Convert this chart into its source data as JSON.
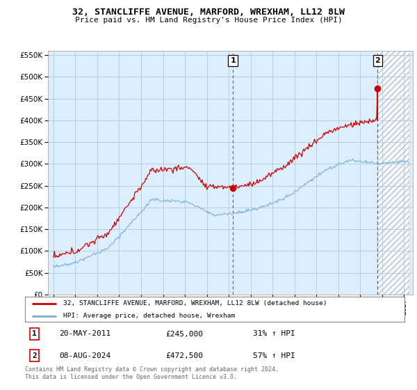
{
  "title": "32, STANCLIFFE AVENUE, MARFORD, WREXHAM, LL12 8LW",
  "subtitle": "Price paid vs. HM Land Registry's House Price Index (HPI)",
  "legend_line1": "32, STANCLIFFE AVENUE, MARFORD, WREXHAM, LL12 8LW (detached house)",
  "legend_line2": "HPI: Average price, detached house, Wrexham",
  "annotation1_date": "20-MAY-2011",
  "annotation1_price": "£245,000",
  "annotation1_hpi": "31% ↑ HPI",
  "annotation2_date": "08-AUG-2024",
  "annotation2_price": "£472,500",
  "annotation2_hpi": "57% ↑ HPI",
  "footer": "Contains HM Land Registry data © Crown copyright and database right 2024.\nThis data is licensed under the Open Government Licence v3.0.",
  "red_line_color": "#cc0000",
  "blue_line_color": "#7aafd4",
  "plot_bg_color": "#ddeeff",
  "background_color": "#ffffff",
  "grid_color": "#b0c8e0",
  "ylim": [
    0,
    560000
  ],
  "yticks": [
    0,
    50000,
    100000,
    150000,
    200000,
    250000,
    300000,
    350000,
    400000,
    450000,
    500000,
    550000
  ],
  "sale1_x": 2011.38,
  "sale1_y": 245000,
  "sale2_x": 2024.58,
  "sale2_y": 472500,
  "hatch_start": 2024.58,
  "hatch_end": 2027.5,
  "xlim_start": 1994.5,
  "xlim_end": 2027.8
}
